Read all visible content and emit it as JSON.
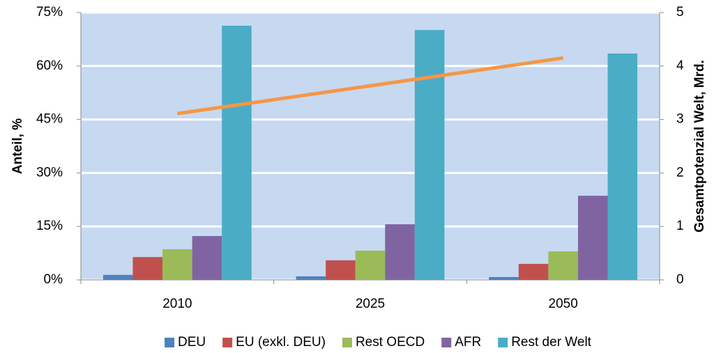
{
  "chart_data": {
    "type": "bar",
    "y_label": "Anteil, %",
    "y2_label": "Gesamtpotenzial Welt, Mrd.",
    "categories": [
      "2010",
      "2025",
      "2050"
    ],
    "series": [
      {
        "name": "DEU",
        "color": "#4f81bd",
        "values": [
          1.4,
          1.0,
          0.8
        ]
      },
      {
        "name": "EU (exkl. DEU)",
        "color": "#c0504d",
        "values": [
          6.4,
          5.5,
          4.5
        ]
      },
      {
        "name": "Rest OECD",
        "color": "#9bbb59",
        "values": [
          8.6,
          8.2,
          8.0
        ]
      },
      {
        "name": "AFR",
        "color": "#8064a2",
        "values": [
          12.3,
          15.6,
          23.6
        ]
      },
      {
        "name": "Rest der Welt",
        "color": "#4bacc6",
        "values": [
          71.3,
          70.1,
          63.5
        ]
      },
      {
        "type": "line",
        "axis": "y2",
        "color": "#f79646",
        "values": [
          3.11,
          3.63,
          4.15
        ]
      }
    ],
    "ylim": [
      0,
      75
    ],
    "yticks": [
      {
        "value": 0,
        "label": "0%"
      },
      {
        "value": 15,
        "label": "15%"
      },
      {
        "value": 30,
        "label": "30%"
      },
      {
        "value": 45,
        "label": "45%"
      },
      {
        "value": 60,
        "label": "60%"
      },
      {
        "value": 75,
        "label": "75%"
      }
    ],
    "y2lim": [
      0,
      5
    ],
    "y2ticks": [
      0,
      1,
      2,
      3,
      4,
      5
    ],
    "grid": true,
    "plot_background": "#c6d9f1",
    "legend": "bottom"
  }
}
